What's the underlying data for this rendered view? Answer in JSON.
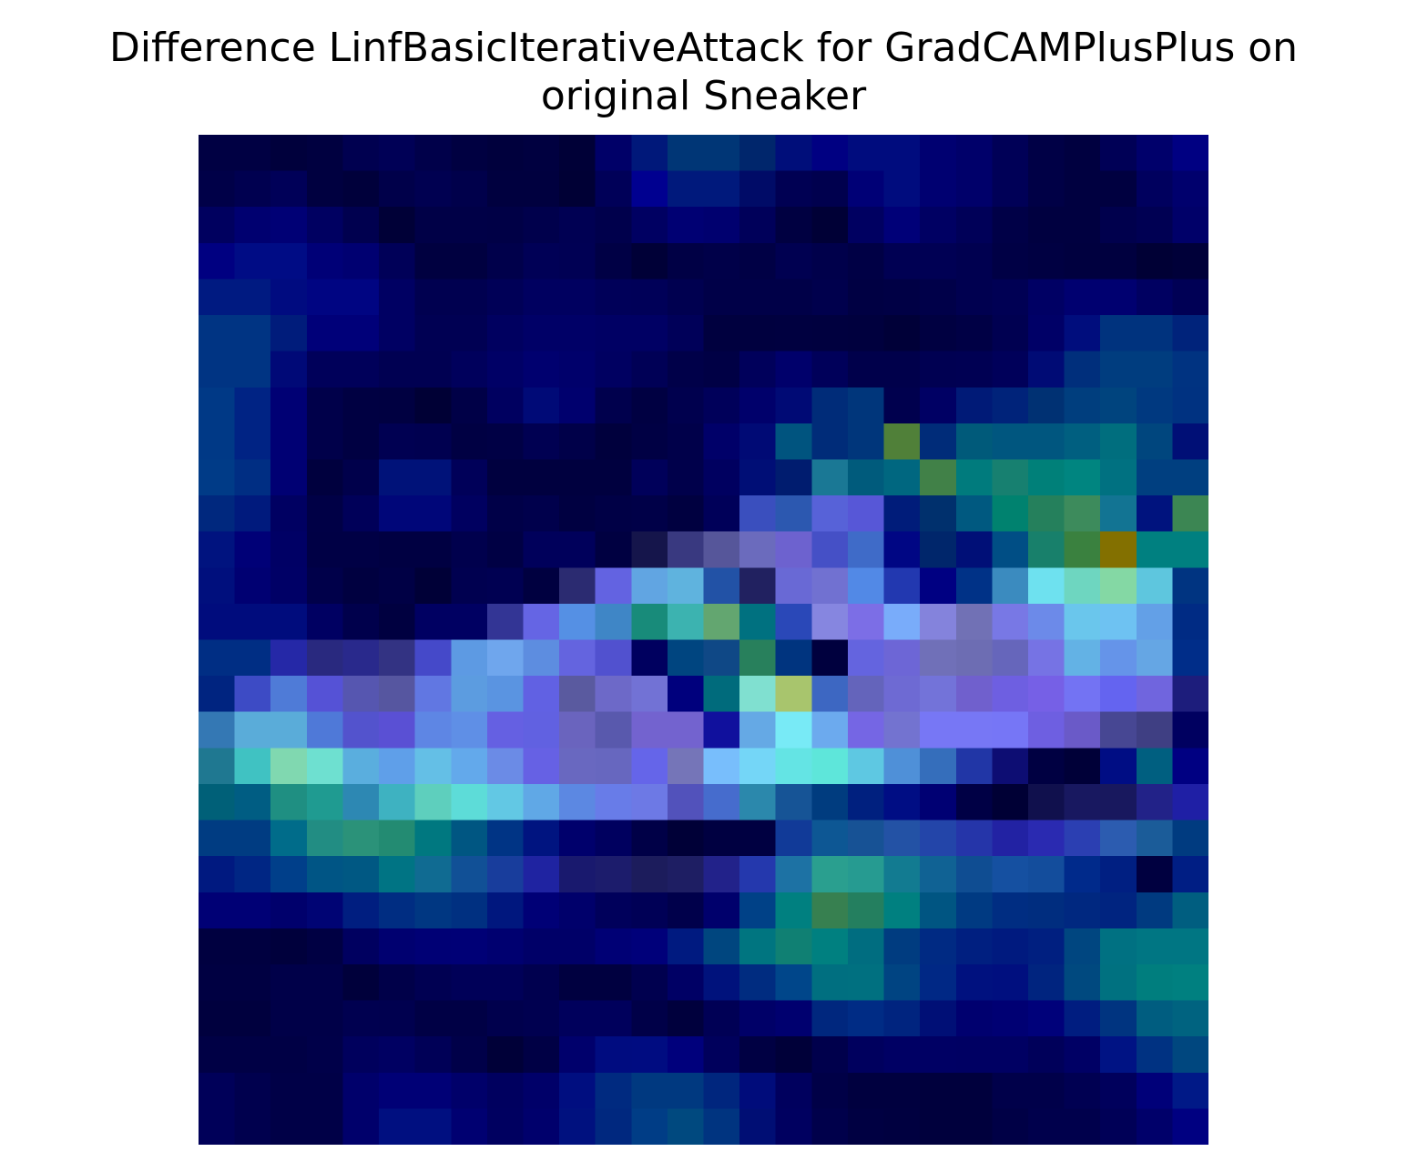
{
  "chart_data": {
    "type": "heatmap",
    "title_lines": [
      "Difference LinfBasicIterativeAttack for GradCAMPlusPlus on",
      "original Sneaker"
    ],
    "rows": 28,
    "cols": 28,
    "axes_visible": false,
    "grid": false,
    "colorbar": false,
    "cell_colors": [
      [
        "#000043",
        "#000043",
        "#00003c",
        "#000040",
        "#000050",
        "#000056",
        "#00004a",
        "#000041",
        "#00003d",
        "#000040",
        "#000037",
        "#000068",
        "#00187a",
        "#003676",
        "#003676",
        "#00266c",
        "#000e7a",
        "#000082",
        "#000c7e",
        "#000c7e",
        "#000071",
        "#00006a",
        "#000057",
        "#000046",
        "#000040",
        "#000056",
        "#00006b",
        "#000082"
      ],
      [
        "#000048",
        "#000050",
        "#000058",
        "#000040",
        "#00003b",
        "#00004a",
        "#000051",
        "#00004b",
        "#00003f",
        "#00003f",
        "#000035",
        "#000058",
        "#000090",
        "#00197c",
        "#00197c",
        "#000b67",
        "#000053",
        "#00004e",
        "#000076",
        "#000c7e",
        "#000071",
        "#00006a",
        "#000057",
        "#000046",
        "#000040",
        "#000040",
        "#00005e",
        "#00006d"
      ],
      [
        "#00005f",
        "#000070",
        "#000075",
        "#000061",
        "#00004f",
        "#000037",
        "#000047",
        "#000047",
        "#000046",
        "#00004c",
        "#000053",
        "#00004c",
        "#000062",
        "#000073",
        "#00006f",
        "#00005a",
        "#000041",
        "#000036",
        "#000061",
        "#000078",
        "#000063",
        "#000058",
        "#000047",
        "#000040",
        "#000040",
        "#00004d",
        "#000053",
        "#000069"
      ],
      [
        "#000081",
        "#000c85",
        "#000c85",
        "#000077",
        "#000071",
        "#000058",
        "#000040",
        "#000040",
        "#00004b",
        "#000056",
        "#000054",
        "#000045",
        "#000037",
        "#000045",
        "#000049",
        "#000045",
        "#000051",
        "#00004b",
        "#000045",
        "#000053",
        "#000054",
        "#000050",
        "#000045",
        "#000042",
        "#00003f",
        "#00003f",
        "#000035",
        "#000039"
      ],
      [
        "#001a81",
        "#001a81",
        "#000b80",
        "#000582",
        "#000582",
        "#000063",
        "#000050",
        "#000050",
        "#000057",
        "#000060",
        "#000060",
        "#000059",
        "#000058",
        "#000050",
        "#000048",
        "#000048",
        "#000048",
        "#00004d",
        "#000043",
        "#000045",
        "#000049",
        "#000050",
        "#000054",
        "#000064",
        "#000070",
        "#000070",
        "#000061",
        "#000055"
      ],
      [
        "#003483",
        "#003483",
        "#001c7b",
        "#000079",
        "#000079",
        "#000063",
        "#000053",
        "#000053",
        "#000060",
        "#000067",
        "#000067",
        "#000064",
        "#000064",
        "#000059",
        "#00003f",
        "#00003f",
        "#000040",
        "#00003f",
        "#00003e",
        "#000038",
        "#000041",
        "#000045",
        "#000051",
        "#000067",
        "#000d7d",
        "#00337e",
        "#00337e",
        "#00237b"
      ],
      [
        "#003483",
        "#003483",
        "#000977",
        "#00005a",
        "#00005a",
        "#000052",
        "#000052",
        "#00005c",
        "#000066",
        "#00006f",
        "#00006b",
        "#000061",
        "#000056",
        "#000049",
        "#000045",
        "#00005b",
        "#00006b",
        "#00005a",
        "#00004b",
        "#00004b",
        "#000052",
        "#000053",
        "#00005a",
        "#000b75",
        "#002f7c",
        "#003d7f",
        "#003d7f",
        "#003381"
      ],
      [
        "#003986",
        "#002384",
        "#000074",
        "#00004a",
        "#000042",
        "#000041",
        "#000035",
        "#000047",
        "#000060",
        "#000a77",
        "#00006e",
        "#00004d",
        "#000042",
        "#00004e",
        "#00005a",
        "#00006b",
        "#000a75",
        "#002c79",
        "#00367b",
        "#00004e",
        "#000064",
        "#001a77",
        "#00237a",
        "#003173",
        "#003e7e",
        "#00447e",
        "#003980",
        "#003281"
      ],
      [
        "#003986",
        "#002384",
        "#000074",
        "#00004a",
        "#000042",
        "#000052",
        "#000050",
        "#000043",
        "#000045",
        "#000052",
        "#000049",
        "#00003d",
        "#000044",
        "#00004a",
        "#000069",
        "#000a75",
        "#00547f",
        "#002c79",
        "#00367b",
        "#508039",
        "#002c79",
        "#005a7a",
        "#00567f",
        "#00567f",
        "#005f80",
        "#006e7e",
        "#00467e",
        "#000f76"
      ],
      [
        "#003b87",
        "#002e83",
        "#000073",
        "#00003e",
        "#00004b",
        "#001279",
        "#001279",
        "#000059",
        "#00003f",
        "#00003f",
        "#00003f",
        "#00003f",
        "#00005a",
        "#00004b",
        "#000060",
        "#000e76",
        "#001c6f",
        "#1a7895",
        "#005b7c",
        "#006780",
        "#418148",
        "#007b7d",
        "#178070",
        "#008079",
        "#008580",
        "#007181",
        "#003f80",
        "#003f80"
      ],
      [
        "#00287e",
        "#001a7d",
        "#000062",
        "#000046",
        "#000059",
        "#000679",
        "#000679",
        "#000060",
        "#000048",
        "#00004c",
        "#000041",
        "#000046",
        "#000048",
        "#000040",
        "#000059",
        "#3a4fbe",
        "#2c58b0",
        "#5762d8",
        "#5757d7",
        "#001c7a",
        "#00306d",
        "#005980",
        "#00826f",
        "#25805c",
        "#3d8b5c",
        "#127493",
        "#00137e",
        "#3c8653"
      ],
      [
        "#00137f",
        "#000077",
        "#000065",
        "#000045",
        "#000045",
        "#000042",
        "#000042",
        "#00004d",
        "#000044",
        "#00005b",
        "#00005b",
        "#000041",
        "#15154b",
        "#393980",
        "#56569a",
        "#6b6bbd",
        "#6d62cf",
        "#4550c6",
        "#3f6bc8",
        "#000684",
        "#00266b",
        "#000f77",
        "#004e85",
        "#18806b",
        "#3a813f",
        "#837000",
        "#008080",
        "#008080"
      ],
      [
        "#000f7d",
        "#000072",
        "#000066",
        "#00004a",
        "#000040",
        "#000045",
        "#000037",
        "#000050",
        "#000052",
        "#000040",
        "#2b2b71",
        "#6363e1",
        "#61a5e2",
        "#5fb3de",
        "#2252a6",
        "#212160",
        "#6969d5",
        "#7171d1",
        "#5289e6",
        "#2238b0",
        "#000082",
        "#003287",
        "#3b8bbf",
        "#6ee1ef",
        "#6ed6c0",
        "#84d8a4",
        "#5ec6de",
        "#003481"
      ],
      [
        "#000c7d",
        "#000c7d",
        "#000c7d",
        "#000062",
        "#00004c",
        "#000040",
        "#000062",
        "#000062",
        "#333595",
        "#6565e4",
        "#5590e4",
        "#3f86c6",
        "#188b7a",
        "#3cb3b0",
        "#63a670",
        "#007180",
        "#2a48b8",
        "#8686e0",
        "#7c6ee6",
        "#79acfa",
        "#8483dc",
        "#7171b5",
        "#7878e5",
        "#6c8ae9",
        "#6ac6ec",
        "#6ec2f2",
        "#63a0e7",
        "#002b84"
      ],
      [
        "#002e84",
        "#002e84",
        "#2528a7",
        "#29297f",
        "#29298c",
        "#333383",
        "#4549c9",
        "#5d9ae3",
        "#6fa6ed",
        "#5d8de0",
        "#6464df",
        "#5151cf",
        "#00005f",
        "#004580",
        "#0f4886",
        "#28805c",
        "#00347f",
        "#00003e",
        "#6464df",
        "#6d66d6",
        "#7070b8",
        "#6d6db3",
        "#6666bb",
        "#7673e4",
        "#63b2e5",
        "#6594e9",
        "#65a6e4",
        "#002d89"
      ],
      [
        "#002480",
        "#3d4bc5",
        "#4f7bd7",
        "#5552d6",
        "#5656b0",
        "#5656a0",
        "#6177e2",
        "#5c9ce0",
        "#5a94e1",
        "#6161e3",
        "#5a5a9f",
        "#6d69c8",
        "#7272d5",
        "#00007d",
        "#006b7c",
        "#80e0d0",
        "#a8c56d",
        "#3d67c2",
        "#6464bb",
        "#6e6ad3",
        "#7373d9",
        "#7060cd",
        "#6e5fe1",
        "#7660e6",
        "#7373f3",
        "#6464f0",
        "#7065de",
        "#1d1d7c"
      ],
      [
        "#3478b4",
        "#5aacd9",
        "#5aacd9",
        "#4f79d8",
        "#5353cd",
        "#5a50d4",
        "#5e86e4",
        "#5f8fe6",
        "#6560e2",
        "#6161e1",
        "#6a64be",
        "#5959ad",
        "#7363cf",
        "#7363cf",
        "#10109d",
        "#65a9e5",
        "#78eaf6",
        "#6caaee",
        "#7566e4",
        "#7373d0",
        "#7777f5",
        "#7777f5",
        "#7676f6",
        "#6e5fe1",
        "#6a5ac8",
        "#474793",
        "#3f3f83",
        "#000060"
      ],
      [
        "#1f7891",
        "#40c2c2",
        "#80d8b0",
        "#6ee0d0",
        "#5aaede",
        "#5f9fe9",
        "#64bfe6",
        "#63a9eb",
        "#6b8be6",
        "#6661e4",
        "#6968c0",
        "#6767bf",
        "#6565e9",
        "#7575b8",
        "#78befc",
        "#74d6f7",
        "#64e4e4",
        "#5ee6da",
        "#5ec8e2",
        "#4f90d8",
        "#356ebb",
        "#2136a6",
        "#0d0d73",
        "#000042",
        "#000038",
        "#000d84",
        "#005f80",
        "#000082"
      ],
      [
        "#006078",
        "#005d83",
        "#1f8f82",
        "#1f9b91",
        "#2d88b3",
        "#3eb2c1",
        "#5ecfbd",
        "#5ddcd8",
        "#62c8e4",
        "#60a8e6",
        "#5c88e2",
        "#687ce8",
        "#6d79e5",
        "#5252bb",
        "#466ccd",
        "#2b88ac",
        "#165496",
        "#003c7f",
        "#00207f",
        "#000d84",
        "#000073",
        "#000045",
        "#000035",
        "#10104d",
        "#181860",
        "#18185e",
        "#222288",
        "#1f1fa5"
      ],
      [
        "#003c82",
        "#003c82",
        "#006c8a",
        "#228d83",
        "#2b9279",
        "#238b72",
        "#007880",
        "#005682",
        "#003485",
        "#001480",
        "#00006c",
        "#00005f",
        "#000047",
        "#000037",
        "#000041",
        "#000041",
        "#113a98",
        "#0d5794",
        "#175295",
        "#2352a5",
        "#2345a9",
        "#2535a9",
        "#2222a3",
        "#2a2ab1",
        "#2b3fb2",
        "#2c5cb0",
        "#1b5c99",
        "#003b80"
      ],
      [
        "#001980",
        "#002684",
        "#003f8a",
        "#005585",
        "#005883",
        "#007484",
        "#106b92",
        "#115096",
        "#183d9c",
        "#1f23a1",
        "#19196e",
        "#1c1c6c",
        "#1c1c5c",
        "#1e1e63",
        "#22228a",
        "#2438ad",
        "#1d72a4",
        "#2a9f8f",
        "#269b91",
        "#127b91",
        "#106294",
        "#0f4d92",
        "#1550a1",
        "#134d9c",
        "#002a8b",
        "#001f82",
        "#000040",
        "#001e84"
      ],
      [
        "#000075",
        "#000075",
        "#00006c",
        "#000474",
        "#001e80",
        "#002d82",
        "#003782",
        "#003081",
        "#00177e",
        "#000076",
        "#00006b",
        "#00005b",
        "#000056",
        "#00004b",
        "#00006c",
        "#004187",
        "#008080",
        "#378050",
        "#247f5f",
        "#008080",
        "#005582",
        "#003a82",
        "#002d82",
        "#002d7f",
        "#002880",
        "#002480",
        "#003a80",
        "#005e80"
      ],
      [
        "#000040",
        "#000040",
        "#00003c",
        "#000043",
        "#000060",
        "#000070",
        "#000075",
        "#000076",
        "#000070",
        "#000068",
        "#000068",
        "#000075",
        "#00007a",
        "#001a80",
        "#00467f",
        "#007580",
        "#108073",
        "#008080",
        "#006d80",
        "#003c80",
        "#002a83",
        "#001f80",
        "#001a7f",
        "#001f80",
        "#004680",
        "#007182",
        "#007683"
      ],
      [
        "#000042",
        "#000042",
        "#000049",
        "#000049",
        "#00003b",
        "#000049",
        "#000052",
        "#000058",
        "#000058",
        "#00004f",
        "#000040",
        "#000040",
        "#00004f",
        "#000065",
        "#00127c",
        "#002c80",
        "#00468a",
        "#006f80",
        "#007080",
        "#004482",
        "#002885",
        "#00117f",
        "#000f7f",
        "#00247f",
        "#00497f",
        "#007180",
        "#007e7e",
        "#008080"
      ],
      [
        "#00003e",
        "#00003e",
        "#000048",
        "#000048",
        "#000050",
        "#00004f",
        "#000045",
        "#000045",
        "#00004d",
        "#000050",
        "#00005c",
        "#00005c",
        "#000048",
        "#00003d",
        "#000055",
        "#000068",
        "#00006f",
        "#00277e",
        "#002c85",
        "#00247f",
        "#000f76",
        "#00006f",
        "#000073",
        "#00017a",
        "#001d80",
        "#003480",
        "#005d80",
        "#006380"
      ],
      [
        "#000045",
        "#000045",
        "#000045",
        "#000049",
        "#00005d",
        "#000062",
        "#000057",
        "#000049",
        "#000038",
        "#000045",
        "#00006c",
        "#000c80",
        "#000c81",
        "#00007c",
        "#00005c",
        "#000043",
        "#000039",
        "#00004c",
        "#00005e",
        "#000064",
        "#000064",
        "#000063",
        "#000063",
        "#00005a",
        "#000065",
        "#001384",
        "#003282",
        "#00477f"
      ],
      [
        "#000059",
        "#00004e",
        "#000047",
        "#000047",
        "#00006b",
        "#000076",
        "#000076",
        "#00006a",
        "#00005f",
        "#000069",
        "#000e80",
        "#002a80",
        "#003980",
        "#003980",
        "#00267e",
        "#000c7b",
        "#00005e",
        "#000047",
        "#00003f",
        "#00003f",
        "#00003d",
        "#00003d",
        "#00004a",
        "#00004a",
        "#000052",
        "#00005c",
        "#000079",
        "#001987"
      ],
      [
        "#000059",
        "#00004e",
        "#000047",
        "#000047",
        "#00006b",
        "#000f80",
        "#000f80",
        "#000071",
        "#000060",
        "#00006c",
        "#00117f",
        "#00287f",
        "#003d86",
        "#00497f",
        "#003480",
        "#000e74",
        "#000060",
        "#00004b",
        "#000042",
        "#000040",
        "#00003d",
        "#00003d",
        "#000046",
        "#00004c",
        "#00004c",
        "#000057",
        "#00006a",
        "#000081"
      ]
    ]
  }
}
